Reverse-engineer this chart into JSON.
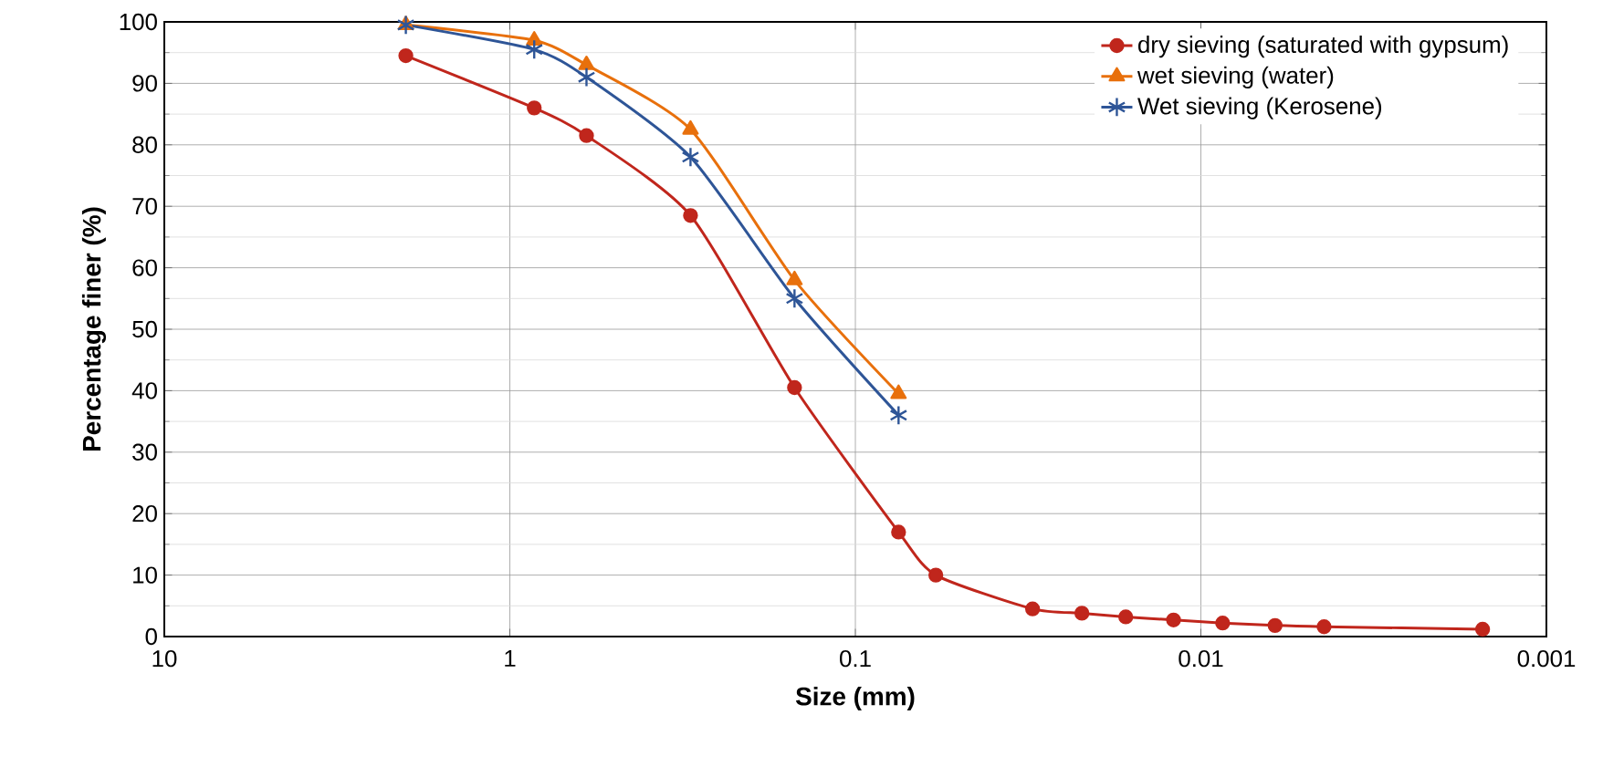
{
  "chart_data": {
    "type": "line",
    "xlabel": "Size (mm)",
    "ylabel": "Percentage finer (%)",
    "log": "x",
    "xlim": [
      10,
      0.001
    ],
    "ylim": [
      0,
      100
    ],
    "xticks": [
      10,
      1,
      0.1,
      0.01,
      0.001
    ],
    "yticks": [
      0,
      10,
      20,
      30,
      40,
      50,
      60,
      70,
      80,
      90,
      100
    ],
    "grid": true,
    "legend": "top right",
    "series": [
      {
        "name": "dry sieving (saturated with gypsum)",
        "color": "#c0261c",
        "marker": "circle",
        "x": [
          2.0,
          0.85,
          0.6,
          0.3,
          0.15,
          0.075,
          0.0585,
          0.0307,
          0.0221,
          0.0165,
          0.012,
          0.00865,
          0.0061,
          0.0044,
          0.00153
        ],
        "values": [
          94.5,
          86,
          81.5,
          68.5,
          40.5,
          17,
          10,
          4.5,
          3.8,
          3.2,
          2.7,
          2.2,
          1.8,
          1.6,
          1.2
        ]
      },
      {
        "name": "wet sieving (water)",
        "color": "#e8700c",
        "marker": "triangle",
        "x": [
          2.0,
          0.85,
          0.6,
          0.3,
          0.15,
          0.075
        ],
        "values": [
          99.5,
          97,
          93,
          82.5,
          58,
          39.5
        ]
      },
      {
        "name": "Wet sieving (Kerosene)",
        "color": "#2e5597",
        "marker": "cross",
        "x": [
          2.0,
          0.85,
          0.6,
          0.3,
          0.15,
          0.075
        ],
        "values": [
          99.5,
          95.5,
          91,
          78,
          55,
          36
        ]
      }
    ]
  }
}
